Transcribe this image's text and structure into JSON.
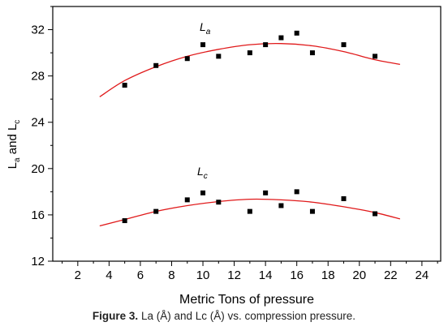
{
  "caption": {
    "label": "Figure 3.",
    "text": "La (Å) and Lc (Å) vs. compression pressure."
  },
  "chart_data": {
    "type": "scatter",
    "xlabel": "Metric Tons of pressure",
    "ylabel": "La and Lc",
    "xlim": [
      0.4,
      25.2
    ],
    "ylim": [
      12,
      34
    ],
    "xticks": [
      2,
      4,
      6,
      8,
      10,
      12,
      14,
      16,
      18,
      20,
      22,
      24
    ],
    "yticks": [
      12,
      16,
      20,
      24,
      28,
      32
    ],
    "grid": false,
    "legend": "none",
    "colors": {
      "points": "#000000",
      "fit": "#e0191a"
    },
    "series": [
      {
        "name": "La",
        "x": [
          5,
          7,
          9,
          10,
          11,
          13,
          14,
          15,
          16,
          17,
          19,
          21
        ],
        "y": [
          27.2,
          28.9,
          29.5,
          30.7,
          29.7,
          30.0,
          30.7,
          31.3,
          31.7,
          30.0,
          30.7,
          29.7
        ],
        "fit": {
          "x": [
            3.4,
            5,
            7,
            9,
            11,
            13,
            15,
            17,
            19,
            21,
            22.6
          ],
          "y": [
            26.2,
            27.6,
            28.8,
            29.7,
            30.3,
            30.7,
            30.8,
            30.6,
            30.1,
            29.4,
            29.0
          ]
        }
      },
      {
        "name": "Lc",
        "x": [
          5,
          7,
          9,
          10,
          11,
          13,
          14,
          15,
          16,
          17,
          19,
          21
        ],
        "y": [
          15.5,
          16.3,
          17.3,
          17.9,
          17.1,
          16.3,
          17.9,
          16.8,
          18.0,
          16.3,
          17.4,
          16.1
        ],
        "fit": {
          "x": [
            3.4,
            5,
            7,
            9,
            11,
            13,
            15,
            17,
            19,
            21,
            22.6
          ],
          "y": [
            15.05,
            15.6,
            16.3,
            16.8,
            17.15,
            17.35,
            17.3,
            17.1,
            16.7,
            16.2,
            15.65
          ]
        }
      }
    ]
  }
}
